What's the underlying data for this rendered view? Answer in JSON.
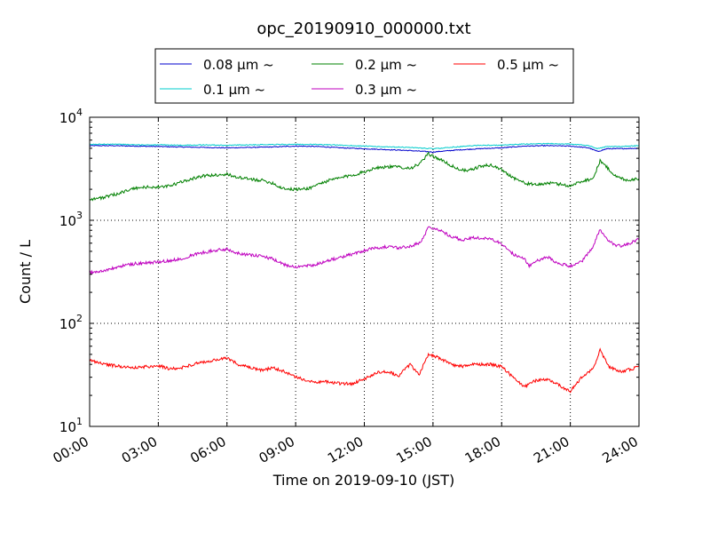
{
  "chart_data": {
    "type": "line",
    "title": "opc_20190910_000000.txt",
    "xlabel": "Time on 2019-09-10 (JST)",
    "ylabel": "Count / L",
    "y_scale": "log",
    "ylim": [
      10,
      10000
    ],
    "xlim": [
      0,
      24
    ],
    "grid": true,
    "legend_position": "top",
    "x_tick_labels": [
      "00:00",
      "03:00",
      "06:00",
      "09:00",
      "12:00",
      "15:00",
      "18:00",
      "21:00",
      "24:00"
    ],
    "y_tick_labels": [
      {
        "base": "10",
        "exp": "1"
      },
      {
        "base": "10",
        "exp": "2"
      },
      {
        "base": "10",
        "exp": "3"
      },
      {
        "base": "10",
        "exp": "4"
      }
    ],
    "series": [
      {
        "name": "0.08 μm ~",
        "color": "#0000cc",
        "points": [
          [
            0,
            5300
          ],
          [
            1,
            5300
          ],
          [
            2,
            5250
          ],
          [
            3,
            5200
          ],
          [
            4,
            5150
          ],
          [
            5,
            5100
          ],
          [
            6,
            5050
          ],
          [
            7,
            5100
          ],
          [
            8,
            5150
          ],
          [
            9,
            5250
          ],
          [
            10,
            5200
          ],
          [
            11,
            5050
          ],
          [
            12,
            4950
          ],
          [
            13,
            4850
          ],
          [
            14,
            4750
          ],
          [
            15,
            4600
          ],
          [
            16,
            4800
          ],
          [
            17,
            4950
          ],
          [
            18,
            5050
          ],
          [
            19,
            5250
          ],
          [
            20,
            5300
          ],
          [
            21,
            5250
          ],
          [
            21.8,
            5050
          ],
          [
            22.2,
            4650
          ],
          [
            22.6,
            4950
          ],
          [
            23,
            4950
          ],
          [
            24,
            5000
          ]
        ]
      },
      {
        "name": "0.1 μm ~",
        "color": "#00cccc",
        "points": [
          [
            0,
            5450
          ],
          [
            1,
            5500
          ],
          [
            2,
            5400
          ],
          [
            3,
            5400
          ],
          [
            4,
            5350
          ],
          [
            5,
            5400
          ],
          [
            6,
            5350
          ],
          [
            7,
            5400
          ],
          [
            8,
            5450
          ],
          [
            9,
            5450
          ],
          [
            10,
            5450
          ],
          [
            11,
            5350
          ],
          [
            12,
            5250
          ],
          [
            13,
            5150
          ],
          [
            14,
            5100
          ],
          [
            15,
            4950
          ],
          [
            16,
            5150
          ],
          [
            17,
            5350
          ],
          [
            18,
            5350
          ],
          [
            19,
            5500
          ],
          [
            20,
            5550
          ],
          [
            21,
            5500
          ],
          [
            21.8,
            5300
          ],
          [
            22.2,
            4950
          ],
          [
            22.6,
            5200
          ],
          [
            23,
            5200
          ],
          [
            24,
            5300
          ]
        ]
      },
      {
        "name": "0.2 μm ~",
        "color": "#008000",
        "points": [
          [
            0,
            1600
          ],
          [
            0.5,
            1650
          ],
          [
            1,
            1750
          ],
          [
            1.5,
            1900
          ],
          [
            2,
            2050
          ],
          [
            2.5,
            2100
          ],
          [
            3,
            2100
          ],
          [
            3.5,
            2150
          ],
          [
            4,
            2350
          ],
          [
            4.5,
            2550
          ],
          [
            5,
            2700
          ],
          [
            5.5,
            2750
          ],
          [
            6,
            2800
          ],
          [
            6.5,
            2600
          ],
          [
            7,
            2500
          ],
          [
            7.5,
            2450
          ],
          [
            8,
            2300
          ],
          [
            8.3,
            2100
          ],
          [
            8.7,
            2000
          ],
          [
            9.2,
            2000
          ],
          [
            9.6,
            2050
          ],
          [
            10,
            2250
          ],
          [
            10.5,
            2450
          ],
          [
            11,
            2600
          ],
          [
            11.5,
            2750
          ],
          [
            12,
            2950
          ],
          [
            12.5,
            3250
          ],
          [
            13,
            3300
          ],
          [
            13.5,
            3300
          ],
          [
            14,
            3200
          ],
          [
            14.4,
            3500
          ],
          [
            14.8,
            4400
          ],
          [
            15.2,
            4000
          ],
          [
            15.6,
            3600
          ],
          [
            16,
            3200
          ],
          [
            16.5,
            3000
          ],
          [
            17,
            3300
          ],
          [
            17.5,
            3450
          ],
          [
            18,
            3100
          ],
          [
            18.5,
            2600
          ],
          [
            19,
            2300
          ],
          [
            19.5,
            2200
          ],
          [
            20,
            2300
          ],
          [
            20.5,
            2250
          ],
          [
            21,
            2150
          ],
          [
            21.5,
            2400
          ],
          [
            22,
            2550
          ],
          [
            22.3,
            3800
          ],
          [
            22.7,
            3100
          ],
          [
            23,
            2650
          ],
          [
            23.5,
            2450
          ],
          [
            24,
            2550
          ]
        ]
      },
      {
        "name": "0.3 μm ~",
        "color": "#bf00bf",
        "points": [
          [
            0,
            310
          ],
          [
            0.5,
            320
          ],
          [
            1,
            340
          ],
          [
            1.5,
            365
          ],
          [
            2,
            380
          ],
          [
            2.5,
            385
          ],
          [
            3,
            395
          ],
          [
            3.5,
            405
          ],
          [
            4,
            425
          ],
          [
            4.5,
            460
          ],
          [
            5,
            490
          ],
          [
            5.5,
            510
          ],
          [
            6,
            525
          ],
          [
            6.5,
            480
          ],
          [
            7,
            460
          ],
          [
            7.5,
            450
          ],
          [
            8,
            420
          ],
          [
            8.5,
            370
          ],
          [
            9,
            355
          ],
          [
            9.5,
            360
          ],
          [
            10,
            380
          ],
          [
            10.5,
            410
          ],
          [
            11,
            440
          ],
          [
            11.5,
            470
          ],
          [
            12,
            510
          ],
          [
            12.5,
            545
          ],
          [
            13,
            550
          ],
          [
            13.5,
            540
          ],
          [
            14,
            560
          ],
          [
            14.5,
            620
          ],
          [
            14.8,
            870
          ],
          [
            15.3,
            800
          ],
          [
            15.8,
            700
          ],
          [
            16.3,
            640
          ],
          [
            16.8,
            680
          ],
          [
            17.5,
            660
          ],
          [
            18,
            590
          ],
          [
            18.5,
            470
          ],
          [
            19,
            420
          ],
          [
            19.2,
            360
          ],
          [
            19.5,
            400
          ],
          [
            20,
            440
          ],
          [
            20.5,
            380
          ],
          [
            21,
            360
          ],
          [
            21.5,
            400
          ],
          [
            22,
            560
          ],
          [
            22.3,
            820
          ],
          [
            22.6,
            650
          ],
          [
            23,
            560
          ],
          [
            23.5,
            580
          ],
          [
            24,
            660
          ]
        ]
      },
      {
        "name": "0.5 μm ~",
        "color": "#ff0000",
        "points": [
          [
            0,
            44
          ],
          [
            0.5,
            41
          ],
          [
            1,
            39
          ],
          [
            1.5,
            38
          ],
          [
            2,
            37
          ],
          [
            2.5,
            38
          ],
          [
            3,
            39
          ],
          [
            3.5,
            36
          ],
          [
            4,
            37
          ],
          [
            4.5,
            40
          ],
          [
            5,
            42
          ],
          [
            5.5,
            44
          ],
          [
            6,
            46
          ],
          [
            6.5,
            40
          ],
          [
            7,
            37
          ],
          [
            7.5,
            35
          ],
          [
            8,
            37
          ],
          [
            8.5,
            34
          ],
          [
            9,
            30
          ],
          [
            9.5,
            28
          ],
          [
            10,
            27
          ],
          [
            10.5,
            27
          ],
          [
            11,
            26
          ],
          [
            11.5,
            26
          ],
          [
            12,
            29
          ],
          [
            12.5,
            33
          ],
          [
            13,
            34
          ],
          [
            13.5,
            31
          ],
          [
            14,
            40
          ],
          [
            14.4,
            32
          ],
          [
            14.8,
            50
          ],
          [
            15.3,
            46
          ],
          [
            15.8,
            40
          ],
          [
            16.3,
            38
          ],
          [
            16.8,
            40
          ],
          [
            17.5,
            40
          ],
          [
            18,
            38
          ],
          [
            18.5,
            30
          ],
          [
            19,
            24
          ],
          [
            19.5,
            28
          ],
          [
            20,
            29
          ],
          [
            20.5,
            25
          ],
          [
            21,
            22
          ],
          [
            21.5,
            30
          ],
          [
            22,
            36
          ],
          [
            22.3,
            55
          ],
          [
            22.7,
            38
          ],
          [
            23.2,
            34
          ],
          [
            23.7,
            36
          ],
          [
            24,
            38
          ]
        ]
      }
    ]
  }
}
